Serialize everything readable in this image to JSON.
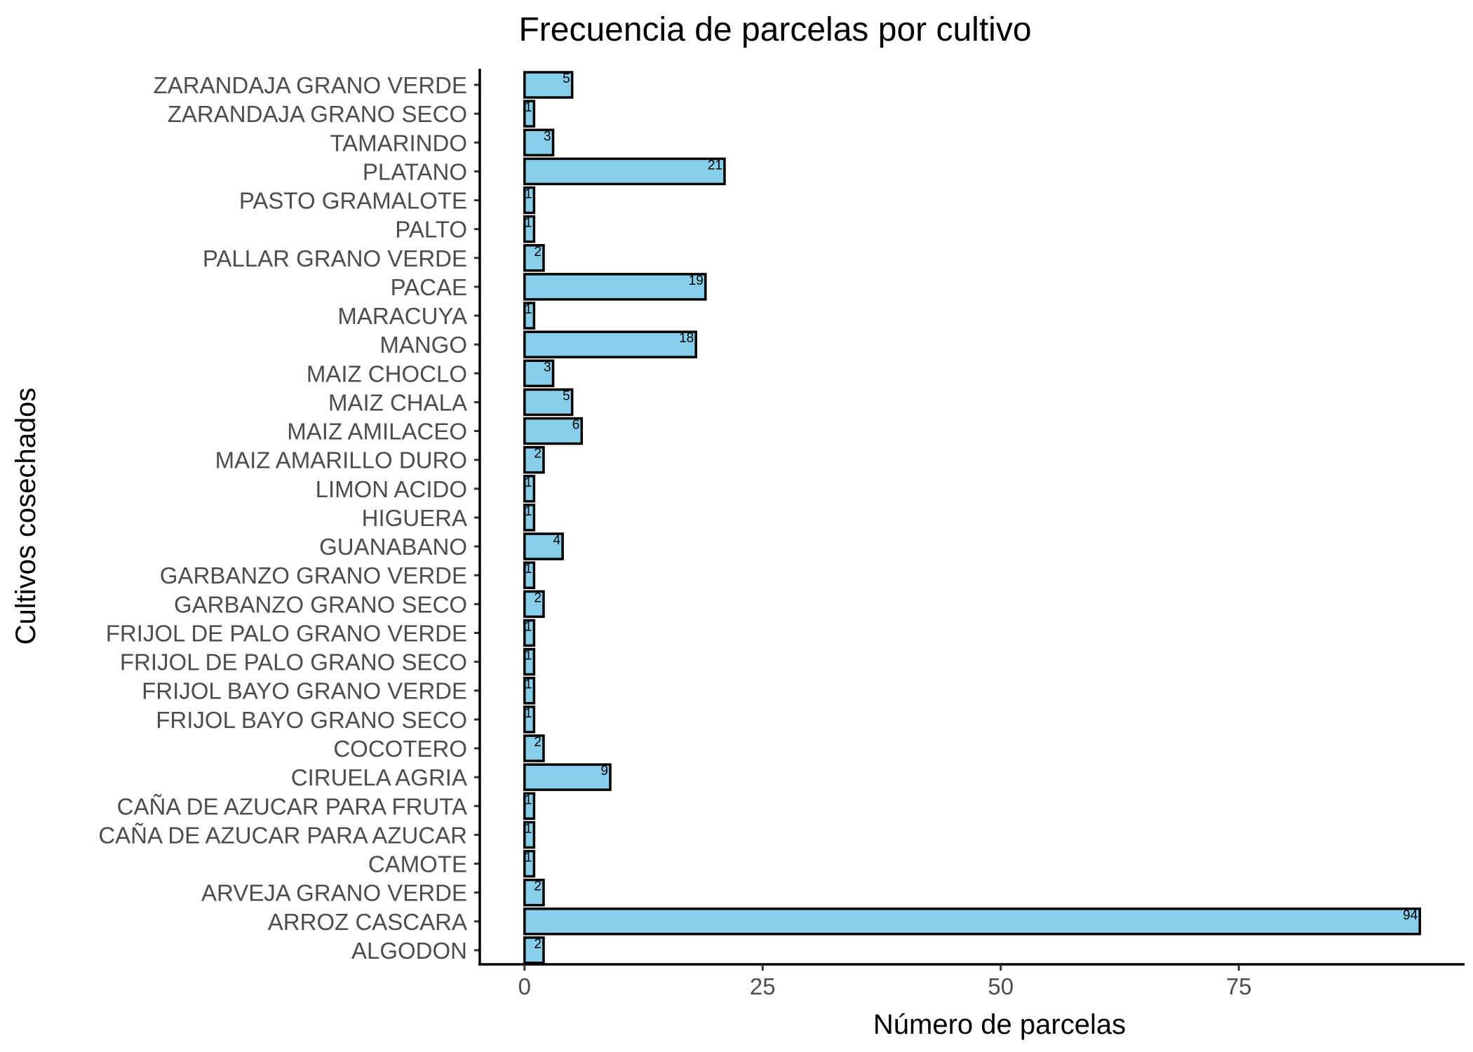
{
  "chart_data": {
    "type": "bar",
    "orientation": "horizontal",
    "title": "Frecuencia de parcelas por cultivo",
    "xlabel": "Número de parcelas",
    "ylabel": "Cultivos cosechados",
    "categories": [
      "ZARANDAJA GRANO VERDE",
      "ZARANDAJA GRANO SECO",
      "TAMARINDO",
      "PLATANO",
      "PASTO GRAMALOTE",
      "PALTO",
      "PALLAR GRANO VERDE",
      "PACAE",
      "MARACUYA",
      "MANGO",
      "MAIZ CHOCLO",
      "MAIZ CHALA",
      "MAIZ AMILACEO",
      "MAIZ AMARILLO DURO",
      "LIMON ACIDO",
      "HIGUERA",
      "GUANABANO",
      "GARBANZO GRANO VERDE",
      "GARBANZO GRANO SECO",
      "FRIJOL DE PALO GRANO VERDE",
      "FRIJOL DE PALO GRANO SECO",
      "FRIJOL BAYO GRANO VERDE",
      "FRIJOL BAYO GRANO SECO",
      "COCOTERO",
      "CIRUELA AGRIA",
      "CAÑA DE AZUCAR PARA FRUTA",
      "CAÑA DE AZUCAR PARA AZUCAR",
      "CAMOTE",
      "ARVEJA GRANO VERDE",
      "ARROZ CASCARA",
      "ALGODON"
    ],
    "values": [
      5,
      1,
      3,
      21,
      1,
      1,
      2,
      19,
      1,
      18,
      3,
      5,
      6,
      2,
      1,
      1,
      4,
      1,
      2,
      1,
      1,
      1,
      1,
      2,
      9,
      1,
      1,
      1,
      2,
      94,
      2
    ],
    "xticks": [
      "0",
      "25",
      "50",
      "75"
    ],
    "xtick_values": [
      0,
      25,
      50,
      75
    ],
    "xlim": [
      -4.7,
      98.7
    ],
    "grid": false,
    "bar_color": "#87CEEB",
    "bar_outline": "#000000"
  }
}
